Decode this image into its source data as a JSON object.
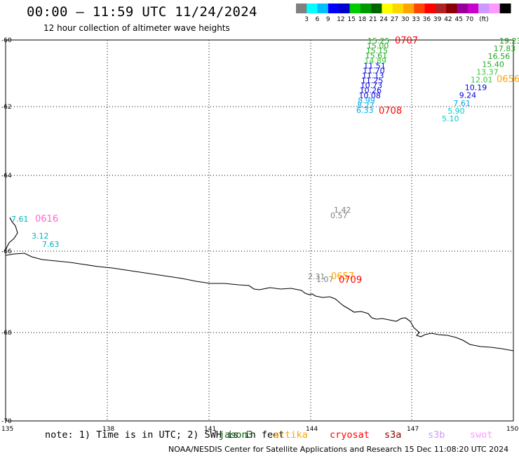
{
  "header": {
    "title": "00:00 – 11:59 UTC 11/24/2024",
    "subtitle": "12 hour collection of altimeter wave heights"
  },
  "legend": {
    "colors": [
      "#808080",
      "#00ffff",
      "#00bfff",
      "#0000ff",
      "#0000cd",
      "#00cc00",
      "#009900",
      "#006400",
      "#ffff00",
      "#ffd700",
      "#ffa500",
      "#ff4500",
      "#ff0000",
      "#b22222",
      "#8b0000",
      "#990099",
      "#cc00cc",
      "#cc99ff",
      "#ff99ff",
      "#000000"
    ],
    "labels": [
      "3",
      "6",
      "9",
      "12",
      "15",
      "18",
      "21",
      "24",
      "27",
      "30",
      "33",
      "36",
      "39",
      "42",
      "45",
      "70",
      "(ft)"
    ]
  },
  "axes": {
    "lat_labels": [
      "-60",
      "-62",
      "-64",
      "-66",
      "-68",
      "-70"
    ],
    "lon_labels": [
      "135",
      "138",
      "141",
      "144",
      "147",
      "150"
    ]
  },
  "wave_heights": {
    "track_a": [
      "15.25",
      "15.00",
      "15.15",
      "15.61",
      "14.89",
      "11.51",
      "11.70",
      "11.13",
      "11.25",
      "10.73",
      "10.26",
      "10.08",
      "8.99",
      "8.27",
      "6.33"
    ],
    "track_b": [
      "19.23",
      "17.83",
      "16.56",
      "15.40",
      "13.37",
      "12.01",
      "10.19",
      "9.24",
      "7.61",
      "5.90",
      "5.10"
    ],
    "west": [
      "7.61",
      "3.12",
      "7.63"
    ],
    "center": [
      "1.42",
      "0.57"
    ],
    "south": [
      "2.31",
      "1.07"
    ]
  },
  "pass_times": {
    "t0707": "0707",
    "t0708": "0708",
    "t0656": "0656",
    "t0616": "0616",
    "t0657": "0657",
    "t0709": "0709"
  },
  "note": {
    "prefix": "note: 1) Time is in UTC; 2) SWH is in feet",
    "satellites": [
      {
        "name": "jason3",
        "color": "#006400"
      },
      {
        "name": "altika",
        "color": "#ffa500"
      },
      {
        "name": "cryosat",
        "color": "#ff0000"
      },
      {
        "name": "s3a",
        "color": "#8b0000"
      },
      {
        "name": "s3b",
        "color": "#cc99ff"
      },
      {
        "name": "swot",
        "color": "#ff99ff"
      }
    ]
  },
  "credit": "NOAA/NESDIS Center for Satellite Applications and Research    15 Dec 11:08:20 UTC 2024"
}
